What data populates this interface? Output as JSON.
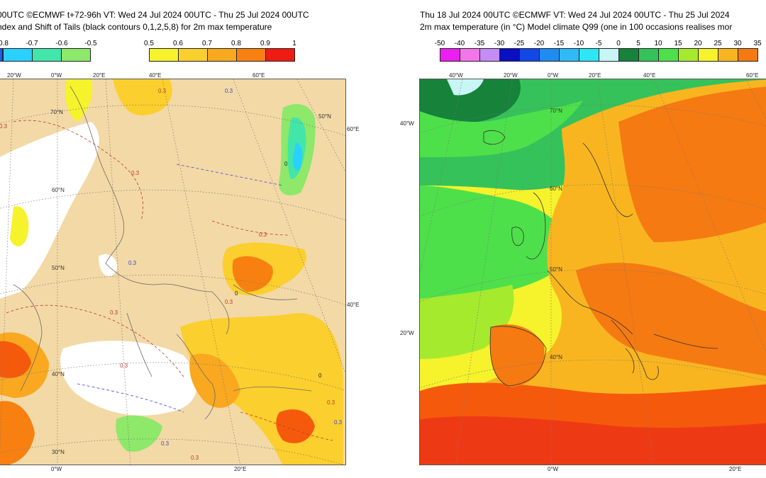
{
  "left_panel": {
    "header_line1": "00UTC ©ECMWF t+72-96h  VT: Wed 24 Jul 2024 00UTC - Thu 25 Jul 2024 00UTC",
    "header_line2": "ndex and Shift of Tails (black contours 0,1,2,5,8) for 2m max temperature",
    "neg_legend": [
      {
        "label": "0.8",
        "color": "#1a5cff"
      },
      {
        "label": "-0.7",
        "color": "#2ad0ff"
      },
      {
        "label": "-0.6",
        "color": "#42e6a8"
      },
      {
        "label": "-0.5",
        "color": "#8ee86a"
      }
    ],
    "pos_legend": {
      "labels": [
        "0.5",
        "0.6",
        "0.7",
        "0.8",
        "0.9",
        "1"
      ],
      "colors": [
        "#f6f22c",
        "#fbcf2d",
        "#f9a820",
        "#f88010",
        "#f55a0c",
        "#ee1c12"
      ]
    },
    "top_ticks": [
      "20°W",
      "0°W",
      "20°E",
      "40°E",
      "60°E"
    ],
    "bottom_ticks": [
      "0°W",
      "20°E"
    ],
    "right_ticks": [
      "60°E",
      "40°E"
    ],
    "grid_lat_labels": [
      "70°N",
      "60°N",
      "50°N",
      "40°N",
      "30°N",
      "50°N"
    ],
    "contour_labels": [
      "0.3",
      "0.3",
      "0.3",
      "0.3",
      "0.3",
      "0.3",
      "0.3",
      "0.3",
      "0.3",
      "0.3",
      "0.3",
      "0",
      "0",
      "0",
      "0.3",
      "0.3"
    ]
  },
  "right_panel": {
    "header_line1": "Thu 18 Jul 2024 00UTC ©ECMWF VT: Wed 24 Jul 2024 00UTC - Thu 25 Jul 2024",
    "header_line2": "2m max temperature (in °C)  Model climate Q99 (one in 100 occasions realises mor",
    "legend": [
      {
        "label": "-50",
        "color": "#ea1ff0"
      },
      {
        "label": "-40",
        "color": "#f276e8"
      },
      {
        "label": "-35",
        "color": "#c48cf4"
      },
      {
        "label": "-30",
        "color": "#6d1ed6"
      },
      {
        "label": "-25",
        "color": "#0a0fc2"
      },
      {
        "label": "-20",
        "color": "#1348e6"
      },
      {
        "label": "-15",
        "color": "#1e8cf0"
      },
      {
        "label": "-10",
        "color": "#2fbaf6"
      },
      {
        "label": "-5",
        "color": "#2ee6f2"
      },
      {
        "label": "0",
        "color": "#c8f6f6"
      },
      {
        "label": "5",
        "color": "#16823a"
      },
      {
        "label": "10",
        "color": "#36c25a"
      },
      {
        "label": "15",
        "color": "#4ee04a"
      },
      {
        "label": "20",
        "color": "#a6ea2e"
      },
      {
        "label": "25",
        "color": "#f6f22c"
      },
      {
        "label": "30",
        "color": "#f9b520"
      },
      {
        "label": "35",
        "color": "#f57a12"
      }
    ],
    "top_ticks": [
      "40°W",
      "20°W",
      "0°W",
      "20°E",
      "40°E",
      "60°E"
    ],
    "bottom_ticks": [
      "0°W",
      "20°E"
    ],
    "left_ticks": [
      "40°W",
      "20°W"
    ],
    "grid_lat_labels": [
      "70°N",
      "60°N",
      "50°N",
      "40°N"
    ]
  }
}
